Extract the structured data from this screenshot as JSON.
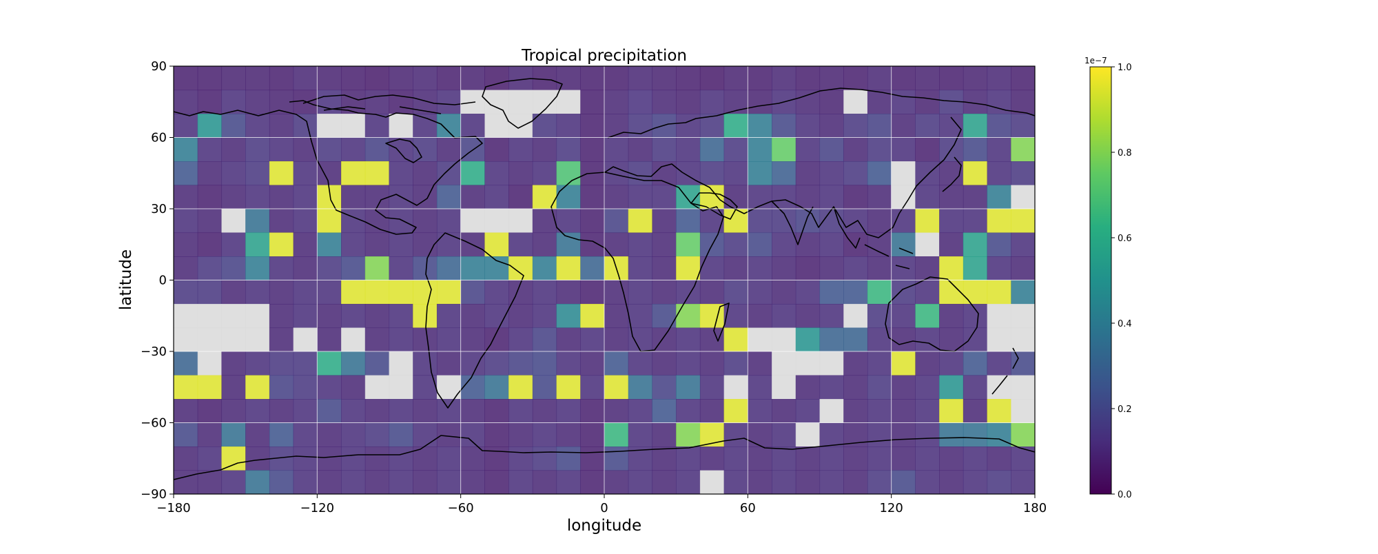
{
  "chart_data": {
    "type": "heatmap",
    "title": "Tropical precipitation",
    "xlabel": "longitude",
    "ylabel": "latitude",
    "xlim": [
      -180,
      180
    ],
    "ylim": [
      -90,
      90
    ],
    "grid": true,
    "projection": "PlateCarree with coastlines",
    "cell_size_degrees": 10,
    "x_ticks": [
      -180,
      -120,
      -60,
      0,
      60,
      120,
      180
    ],
    "x_tick_labels": [
      "−180",
      "−120",
      "−60",
      "0",
      "60",
      "120",
      "180"
    ],
    "y_ticks": [
      90,
      60,
      30,
      0,
      -30,
      -60,
      -90
    ],
    "y_tick_labels": [
      "90",
      "60",
      "30",
      "0",
      "−30",
      "−60",
      "−90"
    ],
    "colormap": "viridis",
    "missing_color": "#d9d9d9",
    "colorbar": {
      "min": 0.0,
      "max": 1.0,
      "multiplier_label": "1e−7",
      "ticks": [
        0.0,
        0.2,
        0.4,
        0.6,
        0.8,
        1.0
      ],
      "tick_labels": [
        "0.0",
        "0.2",
        "0.4",
        "0.6",
        "0.8",
        "1.0"
      ]
    },
    "rows_note": "rows ordered from lat 90 (top) to -90 (bottom), columns from lon -180 to 180; values in units of 1e-7, null = missing",
    "values": [
      [
        0.08,
        0.08,
        0.09,
        0.09,
        0.08,
        0.1,
        0.09,
        0.08,
        0.07,
        0.09,
        0.1,
        0.08,
        0.09,
        0.07,
        0.1,
        0.08,
        0.09,
        0.08,
        0.08,
        0.1,
        0.09,
        0.08,
        0.07,
        0.09,
        0.08,
        0.1,
        0.08,
        0.09,
        0.08,
        0.1,
        0.08,
        0.09,
        0.08,
        0.09,
        0.1,
        0.08
      ],
      [
        0.1,
        0.08,
        0.12,
        0.1,
        0.09,
        0.08,
        0.13,
        0.09,
        0.1,
        0.08,
        0.1,
        0.12,
        null,
        null,
        null,
        null,
        null,
        0.08,
        0.1,
        0.13,
        0.1,
        0.09,
        0.12,
        0.1,
        0.09,
        0.12,
        0.1,
        0.09,
        null,
        0.1,
        0.12,
        0.09,
        0.15,
        0.1,
        0.12,
        0.09
      ],
      [
        0.12,
        0.5,
        0.2,
        0.12,
        0.1,
        0.15,
        null,
        null,
        0.12,
        null,
        0.12,
        0.4,
        0.12,
        null,
        null,
        0.15,
        0.12,
        0.08,
        0.1,
        0.15,
        0.18,
        0.12,
        0.15,
        0.6,
        0.4,
        0.2,
        0.12,
        0.1,
        0.15,
        0.18,
        0.1,
        0.15,
        0.12,
        0.55,
        0.18,
        0.15
      ],
      [
        0.4,
        0.12,
        0.1,
        0.15,
        0.12,
        0.1,
        0.15,
        0.12,
        0.18,
        0.12,
        0.15,
        0.1,
        0.18,
        0.08,
        0.12,
        0.1,
        0.15,
        0.08,
        0.12,
        0.1,
        0.15,
        0.12,
        0.3,
        0.15,
        0.4,
        0.75,
        0.12,
        0.18,
        0.1,
        0.15,
        0.12,
        0.08,
        0.15,
        0.2,
        0.12,
        0.8
      ],
      [
        0.25,
        0.1,
        0.12,
        0.15,
        0.95,
        0.12,
        0.1,
        0.95,
        0.95,
        0.12,
        0.1,
        0.15,
        0.6,
        0.12,
        0.1,
        0.12,
        0.7,
        0.08,
        0.12,
        0.15,
        0.1,
        0.12,
        0.15,
        0.12,
        0.4,
        0.28,
        0.1,
        0.12,
        0.15,
        0.25,
        null,
        0.12,
        0.1,
        0.95,
        0.12,
        0.15
      ],
      [
        0.1,
        0.08,
        0.1,
        0.12,
        0.1,
        0.12,
        0.95,
        0.1,
        0.1,
        0.12,
        0.1,
        0.25,
        0.1,
        0.12,
        0.08,
        0.95,
        0.4,
        0.08,
        0.1,
        0.12,
        0.12,
        0.55,
        0.95,
        0.1,
        0.12,
        0.12,
        0.1,
        0.12,
        0.08,
        0.1,
        null,
        0.12,
        0.1,
        0.1,
        0.4,
        null
      ],
      [
        0.12,
        0.1,
        null,
        0.35,
        0.1,
        0.12,
        0.95,
        0.12,
        0.1,
        0.12,
        0.1,
        0.12,
        null,
        null,
        null,
        0.1,
        0.12,
        0.08,
        0.18,
        0.95,
        0.1,
        0.25,
        0.12,
        0.95,
        0.15,
        0.15,
        0.18,
        0.15,
        0.12,
        0.1,
        0.12,
        0.95,
        0.12,
        0.12,
        0.95,
        0.95
      ],
      [
        0.1,
        0.08,
        0.12,
        0.55,
        0.95,
        0.1,
        0.4,
        0.12,
        0.1,
        0.12,
        0.1,
        0.12,
        0.1,
        0.95,
        0.12,
        0.1,
        0.35,
        0.08,
        0.1,
        0.12,
        0.1,
        0.75,
        0.2,
        0.15,
        0.2,
        0.12,
        0.1,
        0.12,
        0.08,
        0.1,
        0.35,
        null,
        0.1,
        0.55,
        0.2,
        0.12
      ],
      [
        0.1,
        0.15,
        0.18,
        0.4,
        0.12,
        0.1,
        0.15,
        0.2,
        0.8,
        0.12,
        0.2,
        0.3,
        0.4,
        0.4,
        0.95,
        0.4,
        0.95,
        0.3,
        0.95,
        0.12,
        0.1,
        0.95,
        0.12,
        0.1,
        0.12,
        0.1,
        0.08,
        0.1,
        0.12,
        0.1,
        0.12,
        0.1,
        0.95,
        0.55,
        0.12,
        0.1
      ],
      [
        0.15,
        0.15,
        0.1,
        0.12,
        0.1,
        0.12,
        0.12,
        0.95,
        0.95,
        0.95,
        0.95,
        0.95,
        0.18,
        0.12,
        0.1,
        0.12,
        0.1,
        0.08,
        0.1,
        0.12,
        0.1,
        0.12,
        0.1,
        0.15,
        0.12,
        0.1,
        0.12,
        0.25,
        0.25,
        0.65,
        0.15,
        0.12,
        0.95,
        0.95,
        0.95,
        0.4
      ],
      [
        null,
        null,
        null,
        null,
        0.1,
        0.12,
        0.1,
        0.12,
        0.1,
        0.12,
        0.95,
        0.12,
        0.1,
        0.12,
        0.1,
        0.12,
        0.45,
        0.95,
        0.1,
        0.12,
        0.2,
        0.8,
        0.95,
        0.12,
        0.1,
        0.12,
        0.1,
        0.12,
        null,
        0.15,
        0.12,
        0.65,
        0.1,
        0.12,
        null,
        null
      ],
      [
        null,
        null,
        null,
        null,
        0.1,
        null,
        0.1,
        null,
        0.1,
        0.12,
        0.1,
        0.12,
        0.1,
        0.08,
        0.12,
        0.18,
        0.1,
        0.12,
        0.1,
        0.12,
        0.1,
        0.12,
        0.1,
        0.95,
        null,
        null,
        0.5,
        0.3,
        0.3,
        0.12,
        0.1,
        0.12,
        0.1,
        0.12,
        null,
        null
      ],
      [
        0.3,
        null,
        0.1,
        0.12,
        0.15,
        0.15,
        0.6,
        0.35,
        0.2,
        null,
        0.12,
        0.1,
        0.12,
        0.15,
        0.18,
        0.2,
        0.12,
        0.1,
        0.25,
        0.12,
        0.1,
        0.12,
        0.1,
        0.15,
        0.1,
        null,
        null,
        null,
        0.1,
        0.12,
        0.95,
        0.1,
        0.12,
        0.25,
        0.12,
        0.2
      ],
      [
        0.95,
        0.95,
        0.1,
        0.95,
        0.18,
        0.15,
        0.12,
        0.1,
        null,
        null,
        0.12,
        null,
        0.25,
        0.35,
        0.95,
        0.2,
        0.95,
        0.12,
        0.95,
        0.35,
        0.18,
        0.35,
        0.12,
        null,
        0.12,
        null,
        0.1,
        0.12,
        0.1,
        0.15,
        0.1,
        0.12,
        0.5,
        0.12,
        null,
        null
      ],
      [
        0.1,
        0.08,
        0.1,
        0.12,
        0.1,
        0.12,
        0.2,
        0.12,
        0.1,
        0.12,
        0.1,
        0.12,
        0.1,
        0.08,
        0.12,
        0.1,
        0.12,
        0.08,
        0.1,
        0.12,
        0.25,
        0.12,
        0.1,
        0.95,
        0.12,
        0.1,
        0.12,
        null,
        0.1,
        0.12,
        0.1,
        0.12,
        0.95,
        0.1,
        0.95,
        null
      ],
      [
        0.2,
        0.1,
        0.35,
        0.1,
        0.25,
        0.12,
        0.1,
        0.12,
        0.15,
        0.2,
        0.12,
        0.1,
        0.12,
        0.08,
        0.1,
        0.12,
        0.1,
        0.08,
        0.65,
        0.12,
        0.1,
        0.8,
        0.95,
        0.12,
        0.1,
        0.12,
        null,
        0.12,
        0.1,
        0.12,
        0.1,
        0.12,
        0.35,
        0.35,
        0.4,
        0.8
      ],
      [
        0.1,
        0.12,
        0.95,
        0.1,
        0.15,
        0.12,
        0.1,
        0.12,
        0.1,
        0.12,
        0.1,
        0.12,
        0.1,
        0.08,
        0.12,
        0.15,
        0.2,
        0.08,
        0.2,
        0.12,
        0.1,
        0.12,
        0.1,
        0.12,
        0.1,
        0.12,
        0.1,
        0.12,
        0.1,
        0.12,
        0.1,
        0.12,
        0.1,
        0.12,
        0.1,
        0.12
      ],
      [
        0.1,
        0.1,
        0.12,
        0.35,
        0.2,
        0.12,
        0.1,
        0.12,
        0.1,
        0.12,
        0.1,
        0.12,
        0.1,
        0.08,
        0.12,
        0.1,
        0.12,
        0.08,
        0.1,
        0.12,
        0.1,
        0.12,
        null,
        0.12,
        0.1,
        0.12,
        0.1,
        0.12,
        0.1,
        0.15,
        0.2,
        0.12,
        0.1,
        0.12,
        0.15,
        0.12
      ]
    ]
  }
}
